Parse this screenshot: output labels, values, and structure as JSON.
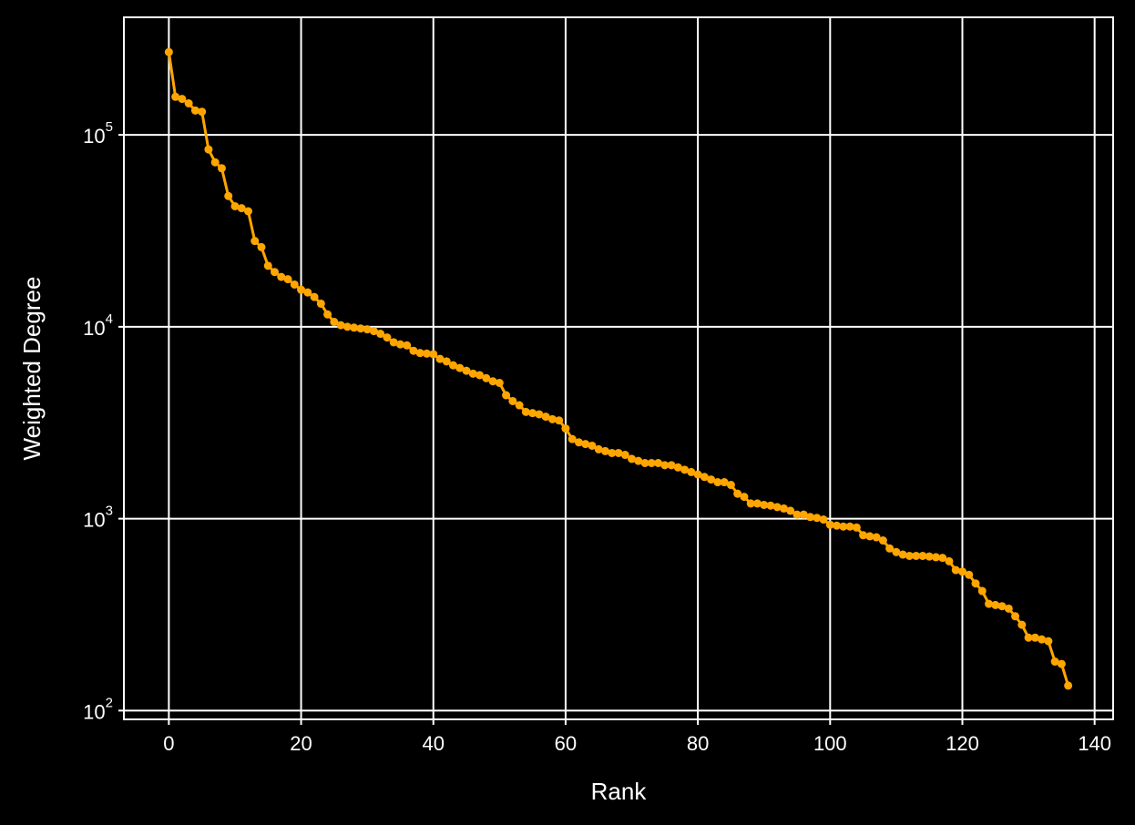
{
  "colors": {
    "background": "#000000",
    "axes": "#ffffff",
    "grid": "#ffffff",
    "series": "#ffa500"
  },
  "chart_data": {
    "type": "line",
    "xlabel": "Rank",
    "ylabel": "Weighted Degree",
    "yscale": "log",
    "grid": true,
    "xlim": [
      -6.8,
      142.8
    ],
    "ylim": [
      90,
      410000
    ],
    "xticks": [
      0,
      20,
      40,
      60,
      80,
      100,
      120,
      140
    ],
    "yticks": [
      {
        "value": 100,
        "base": "10",
        "exp": "2"
      },
      {
        "value": 1000,
        "base": "10",
        "exp": "3"
      },
      {
        "value": 10000,
        "base": "10",
        "exp": "4"
      },
      {
        "value": 100000,
        "base": "10",
        "exp": "5"
      }
    ],
    "series": [
      {
        "marker": "circle",
        "x": [
          0,
          1,
          2,
          3,
          4,
          5,
          6,
          7,
          8,
          9,
          10,
          11,
          12,
          13,
          14,
          15,
          16,
          17,
          18,
          19,
          20,
          21,
          22,
          23,
          24,
          25,
          26,
          27,
          28,
          29,
          30,
          31,
          32,
          33,
          34,
          35,
          36,
          37,
          38,
          39,
          40,
          41,
          42,
          43,
          44,
          45,
          46,
          47,
          48,
          49,
          50,
          51,
          52,
          53,
          54,
          55,
          56,
          57,
          58,
          59,
          60,
          61,
          62,
          63,
          64,
          65,
          66,
          67,
          68,
          69,
          70,
          71,
          72,
          73,
          74,
          75,
          76,
          77,
          78,
          79,
          80,
          81,
          82,
          83,
          84,
          85,
          86,
          87,
          88,
          89,
          90,
          91,
          92,
          93,
          94,
          95,
          96,
          97,
          98,
          99,
          100,
          101,
          102,
          103,
          104,
          105,
          106,
          107,
          108,
          109,
          110,
          111,
          112,
          113,
          114,
          115,
          116,
          117,
          118,
          119,
          120,
          121,
          122,
          123,
          124,
          125,
          126,
          127,
          128,
          129,
          130,
          131,
          132,
          133,
          134,
          135,
          136
        ],
        "values": [
          270000,
          158000,
          154000,
          146000,
          134000,
          132000,
          84000,
          72000,
          67000,
          48000,
          42500,
          41500,
          40000,
          28000,
          26000,
          20800,
          19300,
          18200,
          17700,
          16600,
          15600,
          15100,
          14300,
          13200,
          11600,
          10600,
          10200,
          10000,
          9900,
          9800,
          9700,
          9500,
          9200,
          8800,
          8300,
          8100,
          8000,
          7500,
          7300,
          7250,
          7200,
          6800,
          6600,
          6300,
          6100,
          5900,
          5700,
          5600,
          5400,
          5200,
          5100,
          4400,
          4100,
          3900,
          3600,
          3550,
          3500,
          3400,
          3300,
          3250,
          2950,
          2600,
          2500,
          2450,
          2400,
          2300,
          2250,
          2200,
          2200,
          2150,
          2050,
          2000,
          1950,
          1950,
          1950,
          1900,
          1900,
          1850,
          1800,
          1750,
          1700,
          1650,
          1600,
          1550,
          1550,
          1500,
          1350,
          1300,
          1200,
          1200,
          1180,
          1170,
          1150,
          1130,
          1100,
          1050,
          1050,
          1020,
          1010,
          990,
          930,
          920,
          910,
          910,
          900,
          820,
          810,
          800,
          770,
          700,
          670,
          650,
          640,
          640,
          640,
          635,
          630,
          625,
          600,
          540,
          530,
          510,
          460,
          420,
          360,
          355,
          350,
          340,
          310,
          280,
          240,
          240,
          235,
          230,
          180,
          175,
          135
        ]
      }
    ]
  }
}
